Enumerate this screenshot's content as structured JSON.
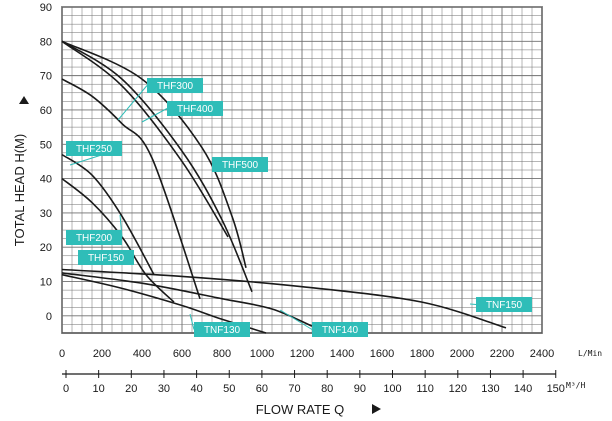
{
  "chart_data": {
    "type": "line",
    "ylabel": "TOTAL HEAD H(M)",
    "xlabel": "FLOW RATE Q",
    "x_unit": "L/Min",
    "x2_unit": "M³/H",
    "ylim": [
      -5,
      90
    ],
    "xlim": [
      0,
      2400
    ],
    "y_ticks": [
      90,
      80,
      70,
      60,
      50,
      40,
      30,
      20,
      10,
      0
    ],
    "x_ticks": [
      0,
      200,
      400,
      600,
      800,
      1000,
      1200,
      1400,
      1600,
      1800,
      2000,
      2200,
      2400
    ],
    "x2_ticks": [
      0,
      10,
      20,
      30,
      40,
      50,
      60,
      70,
      80,
      90,
      100,
      110,
      120,
      130,
      140,
      150
    ],
    "grid": true,
    "series": [
      {
        "name": "THF300",
        "x": [
          0,
          300,
          600,
          800,
          950
        ],
        "y": [
          80,
          69,
          48,
          28,
          7
        ]
      },
      {
        "name": "THF400",
        "x": [
          0,
          300,
          600,
          830
        ],
        "y": [
          80,
          67,
          45,
          23
        ]
      },
      {
        "name": "THF500",
        "x": [
          0,
          400,
          700,
          850,
          920
        ],
        "y": [
          80,
          69,
          49,
          29,
          14
        ]
      },
      {
        "name": "THF250",
        "x": [
          0,
          150,
          300,
          450,
          690
        ],
        "y": [
          69,
          64,
          56,
          46,
          5
        ]
      },
      {
        "name": "THF200",
        "x": [
          0,
          150,
          300,
          460
        ],
        "y": [
          47,
          41,
          29,
          12
        ]
      },
      {
        "name": "THF150",
        "x": [
          0,
          150,
          300,
          420,
          560
        ],
        "y": [
          40,
          33,
          23,
          12,
          4
        ]
      },
      {
        "name": "TNF150",
        "x": [
          0,
          600,
          1200,
          1800,
          2220
        ],
        "y": [
          13.5,
          11.5,
          8.5,
          4,
          -3.5
        ]
      },
      {
        "name": "TNF130",
        "x": [
          0,
          300,
          600,
          800,
          1020
        ],
        "y": [
          12,
          8,
          3,
          -1,
          -5
        ]
      },
      {
        "name": "TNF140",
        "x": [
          0,
          400,
          800,
          1050,
          1250
        ],
        "y": [
          12.5,
          9.5,
          5,
          2,
          -3
        ]
      }
    ],
    "annotations": [
      {
        "text": "THF300"
      },
      {
        "text": "THF400"
      },
      {
        "text": "THF250"
      },
      {
        "text": "THF500"
      },
      {
        "text": "THF200"
      },
      {
        "text": "THF150"
      },
      {
        "text": "TNF150"
      },
      {
        "text": "TNF130"
      },
      {
        "text": "TNF140"
      }
    ],
    "colors": {
      "curve": "#1a1a1a",
      "label_bg": "#2fbdb8",
      "label_text": "#ffffff",
      "grid": "#6f6f6f"
    }
  }
}
